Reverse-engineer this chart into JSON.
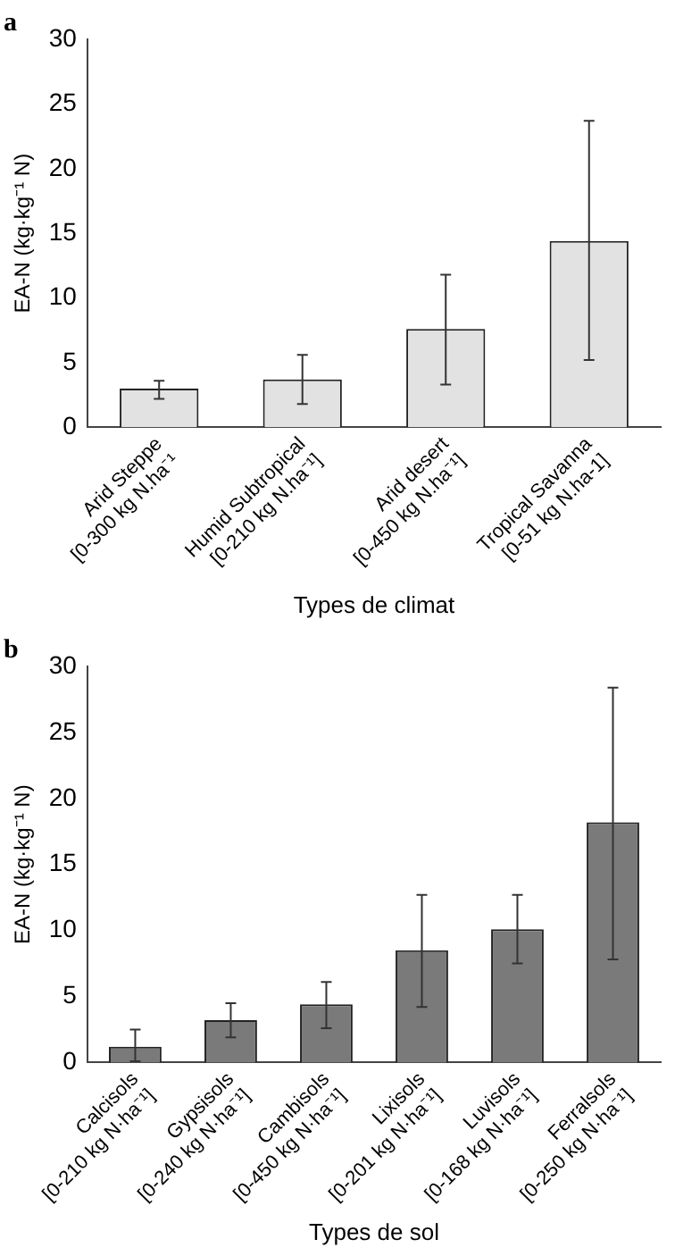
{
  "chart_data": [
    {
      "type": "bar",
      "title": "a",
      "xlabel": "Types de climat",
      "ylabel": "EA-N (kg·kg⁻¹ N)",
      "categories": [
        "Arid Steppe\n[0-300 kg N.ha⁻¹",
        "Humid Subtropical\n[0-210 kg N.ha⁻¹]",
        "Arid desert\n[0-450 kg N.ha⁻¹]",
        "Tropical Savanna\n[0-51 kg N.ha-1]"
      ],
      "values": [
        3.0,
        3.7,
        7.6,
        14.4
      ],
      "color": "#e2e2e2",
      "errors": [
        [
          2.2,
          3.6
        ],
        [
          1.8,
          5.6
        ],
        [
          3.3,
          11.8
        ],
        [
          5.2,
          23.7
        ]
      ],
      "ylim": [
        0,
        30
      ],
      "yticks": [
        0,
        5,
        10,
        15,
        20,
        25,
        30
      ],
      "grid": false,
      "legend": false
    },
    {
      "type": "bar",
      "title": "b",
      "xlabel": "Types de sol",
      "ylabel": "EA-N (kg·kg⁻¹ N)",
      "categories": [
        "Calcisols\n[0-210 kg N·ha⁻¹]",
        "Gypsisols\n[0-240 kg N·ha⁻¹]",
        "Cambisols\n[0-450 kg N·ha⁻¹]",
        "Lixisols\n[0-201 kg N·ha⁻¹]",
        "Luvisols\n[0-168 kg N·ha⁻¹]",
        "Ferralsols\n[0-250 kg N·ha⁻¹]"
      ],
      "values": [
        1.2,
        3.2,
        4.4,
        8.5,
        10.1,
        18.2
      ],
      "color": "#7a7a7a",
      "errors": [
        [
          0.1,
          2.5
        ],
        [
          1.9,
          4.5
        ],
        [
          2.6,
          6.1
        ],
        [
          4.2,
          12.7
        ],
        [
          7.5,
          12.7
        ],
        [
          7.8,
          28.4
        ]
      ],
      "ylim": [
        0,
        30
      ],
      "yticks": [
        0,
        5,
        10,
        15,
        20,
        25,
        30
      ],
      "grid": false,
      "legend": false
    }
  ]
}
